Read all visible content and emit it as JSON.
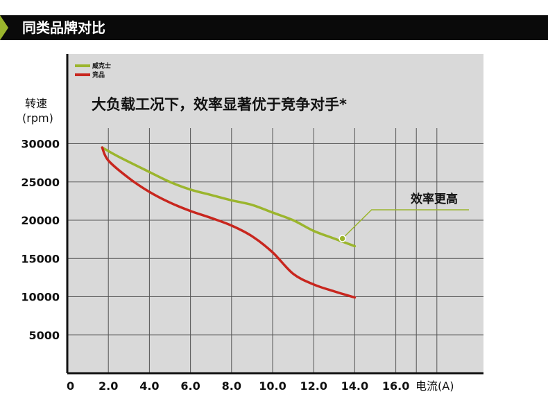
{
  "header": {
    "title": "同类品牌对比",
    "accent_color": "#9bb52d",
    "bar_color": "#0a0a0a"
  },
  "chart_data": {
    "type": "line",
    "title": "大负载工况下，效率显著优于竞争对手*",
    "ylabel_line1": "转速",
    "ylabel_line2": "(rpm)",
    "xlabel": "电流(A)",
    "xlim": [
      0,
      18
    ],
    "ylim": [
      0,
      33000
    ],
    "grid": true,
    "legend_placement": "top-left",
    "x_ticks": [
      {
        "value": 0,
        "label": "0"
      },
      {
        "value": 2,
        "label": "2.0"
      },
      {
        "value": 4,
        "label": "4.0"
      },
      {
        "value": 6,
        "label": "6.0"
      },
      {
        "value": 8,
        "label": "8.0"
      },
      {
        "value": 10,
        "label": "10.0"
      },
      {
        "value": 12,
        "label": "12.0"
      },
      {
        "value": 14,
        "label": "14.0"
      },
      {
        "value": 16,
        "label": "16.0"
      }
    ],
    "y_ticks": [
      {
        "value": 5000,
        "label": "5000"
      },
      {
        "value": 10000,
        "label": "10000"
      },
      {
        "value": 15000,
        "label": "15000"
      },
      {
        "value": 20000,
        "label": "20000"
      },
      {
        "value": 25000,
        "label": "25000"
      },
      {
        "value": 30000,
        "label": "30000"
      }
    ],
    "series": [
      {
        "name": "威克士",
        "color": "#9bb52d",
        "x": [
          1.7,
          2.5,
          4.0,
          5.0,
          6.0,
          7.0,
          8.0,
          9.0,
          10.0,
          11.0,
          12.0,
          13.0,
          14.0
        ],
        "y": [
          29500,
          28300,
          26300,
          25000,
          24000,
          23300,
          22600,
          22000,
          21000,
          20000,
          18600,
          17600,
          16600
        ]
      },
      {
        "name": "竞品",
        "color": "#c8261e",
        "x": [
          1.7,
          2.0,
          3.0,
          4.0,
          5.0,
          6.0,
          7.0,
          8.0,
          9.0,
          10.0,
          11.0,
          12.0,
          13.0,
          14.0
        ],
        "y": [
          29500,
          27800,
          25500,
          23700,
          22300,
          21200,
          20300,
          19300,
          17900,
          15800,
          13000,
          11600,
          10700,
          9900
        ]
      }
    ],
    "annotation": {
      "text": "效率更高",
      "line_color": "#9bb52d",
      "point_x": 13.4,
      "point_y": 17600
    },
    "plot_background": "#d9d9d9"
  }
}
